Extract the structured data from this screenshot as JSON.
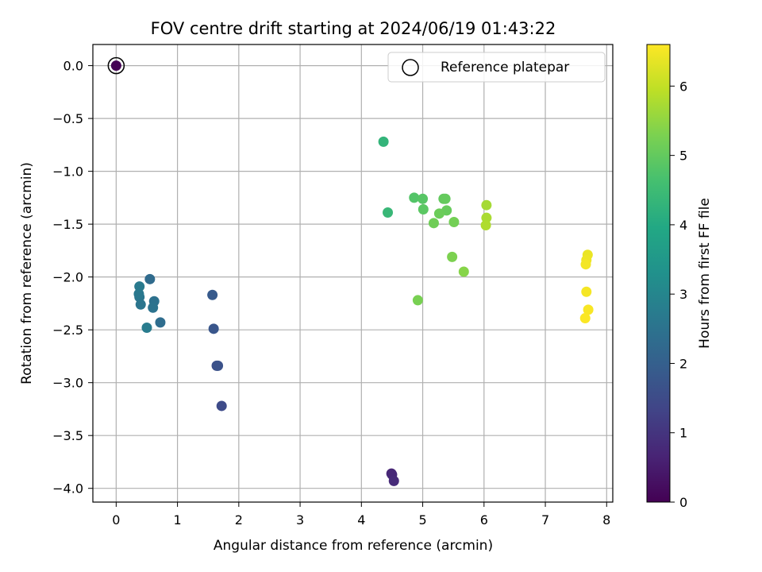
{
  "chart_data": {
    "type": "scatter",
    "title": "FOV centre drift starting at 2024/06/19 01:43:22",
    "xlabel": "Angular distance from reference (arcmin)",
    "ylabel": "Rotation from reference (arcmin)",
    "xlim": [
      -0.38,
      8.1
    ],
    "ylim": [
      -4.13,
      0.2
    ],
    "x_ticks": [
      0,
      1,
      2,
      3,
      4,
      5,
      6,
      7,
      8
    ],
    "y_ticks": [
      0.0,
      -0.5,
      -1.0,
      -1.5,
      -2.0,
      -2.5,
      -3.0,
      -3.5,
      -4.0
    ],
    "x_tick_labels": [
      "0",
      "1",
      "2",
      "3",
      "4",
      "5",
      "6",
      "7",
      "8"
    ],
    "y_tick_labels": [
      "0.0",
      "−0.5",
      "−1.0",
      "−1.5",
      "−2.0",
      "−2.5",
      "−3.0",
      "−3.5",
      "−4.0"
    ],
    "grid": true,
    "legend": {
      "position": "top-right",
      "entries": [
        "Reference platepar"
      ]
    },
    "colorbar": {
      "label": "Hours from first FF file",
      "colormap": "viridis",
      "range": [
        0,
        6.6
      ],
      "ticks": [
        0,
        1,
        2,
        3,
        4,
        5,
        6
      ],
      "tick_labels": [
        "0",
        "1",
        "2",
        "3",
        "4",
        "5",
        "6"
      ]
    },
    "reference": {
      "x": 0,
      "y": 0,
      "hours": 0
    },
    "points": [
      {
        "x": 0.0,
        "y": 0.0,
        "hours": 0.0
      },
      {
        "x": 4.49,
        "y": -3.86,
        "hours": 0.7
      },
      {
        "x": 4.5,
        "y": -3.87,
        "hours": 0.75
      },
      {
        "x": 4.53,
        "y": -3.93,
        "hours": 0.8
      },
      {
        "x": 1.72,
        "y": -3.22,
        "hours": 1.5
      },
      {
        "x": 1.64,
        "y": -2.84,
        "hours": 1.6
      },
      {
        "x": 1.66,
        "y": -2.84,
        "hours": 1.65
      },
      {
        "x": 1.59,
        "y": -2.49,
        "hours": 1.75
      },
      {
        "x": 1.57,
        "y": -2.17,
        "hours": 1.85
      },
      {
        "x": 0.55,
        "y": -2.02,
        "hours": 2.3
      },
      {
        "x": 0.72,
        "y": -2.43,
        "hours": 2.35
      },
      {
        "x": 0.62,
        "y": -2.23,
        "hours": 2.45
      },
      {
        "x": 0.6,
        "y": -2.29,
        "hours": 2.5
      },
      {
        "x": 0.4,
        "y": -2.26,
        "hours": 2.55
      },
      {
        "x": 0.38,
        "y": -2.19,
        "hours": 2.6
      },
      {
        "x": 0.37,
        "y": -2.16,
        "hours": 2.65
      },
      {
        "x": 0.38,
        "y": -2.09,
        "hours": 2.7
      },
      {
        "x": 0.5,
        "y": -2.48,
        "hours": 2.75
      },
      {
        "x": 4.36,
        "y": -0.72,
        "hours": 4.3
      },
      {
        "x": 4.43,
        "y": -1.39,
        "hours": 4.4
      },
      {
        "x": 4.86,
        "y": -1.25,
        "hours": 4.8
      },
      {
        "x": 5.0,
        "y": -1.26,
        "hours": 4.85
      },
      {
        "x": 5.01,
        "y": -1.36,
        "hours": 4.9
      },
      {
        "x": 5.34,
        "y": -1.26,
        "hours": 5.0
      },
      {
        "x": 5.37,
        "y": -1.26,
        "hours": 5.02
      },
      {
        "x": 5.39,
        "y": -1.37,
        "hours": 5.05
      },
      {
        "x": 5.27,
        "y": -1.4,
        "hours": 5.1
      },
      {
        "x": 5.18,
        "y": -1.49,
        "hours": 5.15
      },
      {
        "x": 5.51,
        "y": -1.48,
        "hours": 5.2
      },
      {
        "x": 4.92,
        "y": -2.22,
        "hours": 5.25
      },
      {
        "x": 5.48,
        "y": -1.81,
        "hours": 5.3
      },
      {
        "x": 5.67,
        "y": -1.95,
        "hours": 5.4
      },
      {
        "x": 6.04,
        "y": -1.32,
        "hours": 5.7
      },
      {
        "x": 6.04,
        "y": -1.44,
        "hours": 5.75
      },
      {
        "x": 6.03,
        "y": -1.51,
        "hours": 5.8
      },
      {
        "x": 7.69,
        "y": -1.79,
        "hours": 6.4
      },
      {
        "x": 7.67,
        "y": -1.84,
        "hours": 6.45
      },
      {
        "x": 7.66,
        "y": -1.88,
        "hours": 6.5
      },
      {
        "x": 7.67,
        "y": -2.14,
        "hours": 6.52
      },
      {
        "x": 7.7,
        "y": -2.31,
        "hours": 6.55
      },
      {
        "x": 7.65,
        "y": -2.39,
        "hours": 6.58
      }
    ]
  }
}
